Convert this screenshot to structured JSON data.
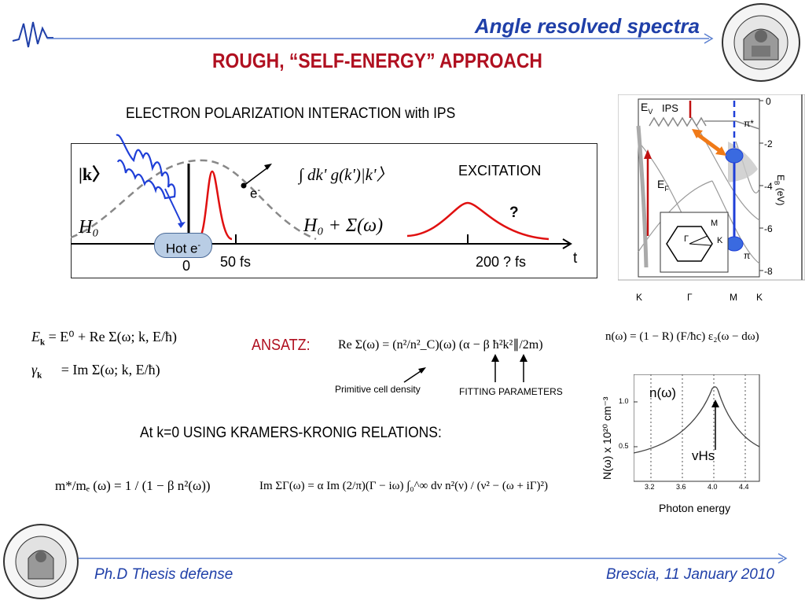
{
  "slide": {
    "title": "Angle resolved spectra",
    "heading": "ROUGH, “SELF-ENERGY” APPROACH",
    "topic": "ELECTRON POLARIZATION INTERACTION with IPS"
  },
  "diagram": {
    "ket_k": "|k〉",
    "h0_left": "H₀",
    "electron": "e",
    "electron_sup": "-",
    "integral": "∫ dk' g(k')|k'〉",
    "h0_sigma": "H₀ + Σ(ω)",
    "excitation": "EXCITATION",
    "question": "?",
    "hot_e": "Hot e",
    "hot_e_sup": "-",
    "zero": "0",
    "t50": "50 fs",
    "t200": "200 ? fs",
    "t_axis": "t"
  },
  "band_plot": {
    "ev_label": "E",
    "ev_sub": "V",
    "ips": "IPS",
    "ef_label": "E",
    "ef_sub": "F",
    "pi_star": "π*",
    "pi": "π",
    "m_label": "M",
    "gamma_label": "Γ",
    "k_label": "K",
    "yticks": [
      "0",
      "-2",
      "-4",
      "-6",
      "-8"
    ],
    "ylabel": "E",
    "ylabel_sub": "B",
    "ylabel_unit": " (eV)",
    "xticks": [
      "K",
      "Γ",
      "M",
      "K"
    ]
  },
  "equations": {
    "ek_lhs": "E",
    "ek_rhs": "= E⁰ + Re Σ(ω; k, E/ħ)",
    "gk_lhs": "γ",
    "gk_rhs": "= Im Σ(ω; k, E/ħ)",
    "ansatz": "ANSATZ:",
    "ansatz_eq": "Re Σ(ω) = (n²/n²_C)(ω) (α − β ħ²k²∥/2m)",
    "n_omega": "n(ω) = (1 − R) (F/ħc) ε₂(ω − dω)",
    "primitive": "Primitive cell density",
    "fitting": "FITTING PARAMETERS",
    "kramers": "At k=0 USING KRAMERS-KRONIG RELATIONS:",
    "mass_eq": "m*/mₑ (ω) = 1 / (1 − β n²(ω))",
    "im_eq": "Im ΣΓ(ω) = α Im (2/π)(Γ − iω) ∫₀^∞ dν n²(ν) / (ν² − (ω + iΓ)²)"
  },
  "dos_plot": {
    "curve_label": "n(ω)",
    "vhs": "vHs",
    "ylabel": "N(ω) x 10²⁰ cm⁻³",
    "xlabel": "Photon energy",
    "xticks": [
      "3.2",
      "3.6",
      "4.0",
      "4.4"
    ],
    "yticks": [
      "1.0",
      "0.5"
    ]
  },
  "footer": {
    "left": "Ph.D Thesis defense",
    "right": "Brescia, 11 January 2010"
  },
  "colors": {
    "title_blue": "#1f3fa8",
    "heading_red": "#b01020",
    "wave_blue": "#1f3fd8",
    "curve_red": "#e01010",
    "hot_e_fill": "#b9cde5",
    "orange": "#f07a18"
  },
  "icons": {
    "top_left": "wave-logo-icon",
    "top_right": "university-seal-icon",
    "bottom_left": "lab-seal-icon"
  }
}
